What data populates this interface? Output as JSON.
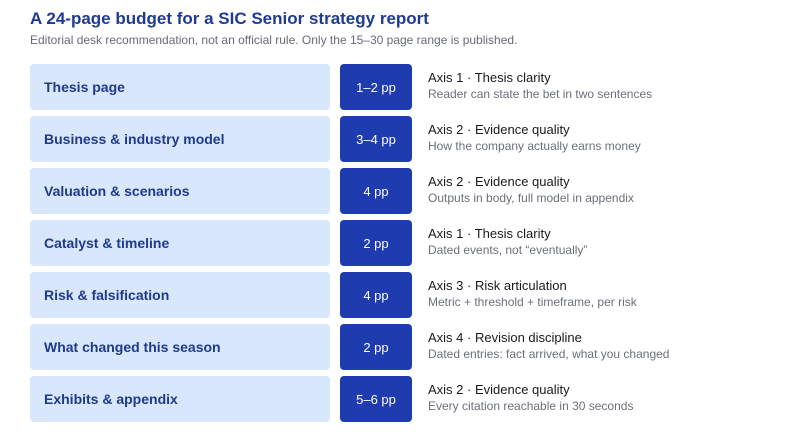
{
  "header": {
    "title": "A 24-page budget for a SIC Senior strategy report",
    "subtitle": "Editorial desk recommendation, not an official rule. Only the 15–30 page range is published."
  },
  "rows": [
    {
      "section": "Thesis page",
      "pages": "1–2 pp",
      "axis": "Axis 1 · Thesis clarity",
      "note": "Reader can state the bet in two sentences"
    },
    {
      "section": "Business & industry model",
      "pages": "3–4 pp",
      "axis": "Axis 2 · Evidence quality",
      "note": "How the company actually earns money"
    },
    {
      "section": "Valuation & scenarios",
      "pages": "4 pp",
      "axis": "Axis 2 · Evidence quality",
      "note": "Outputs in body, full model in appendix"
    },
    {
      "section": "Catalyst & timeline",
      "pages": "2 pp",
      "axis": "Axis 1 · Thesis clarity",
      "note": "Dated events, not “eventually”"
    },
    {
      "section": "Risk & falsification",
      "pages": "4 pp",
      "axis": "Axis 3 · Risk articulation",
      "note": "Metric + threshold + timeframe, per risk"
    },
    {
      "section": "What changed this season",
      "pages": "2 pp",
      "axis": "Axis 4 · Revision discipline",
      "note": "Dated entries: fact arrived, what you changed"
    },
    {
      "section": "Exhibits & appendix",
      "pages": "5–6 pp",
      "axis": "Axis 2 · Evidence quality",
      "note": "Every citation reachable in 30 seconds"
    }
  ]
}
